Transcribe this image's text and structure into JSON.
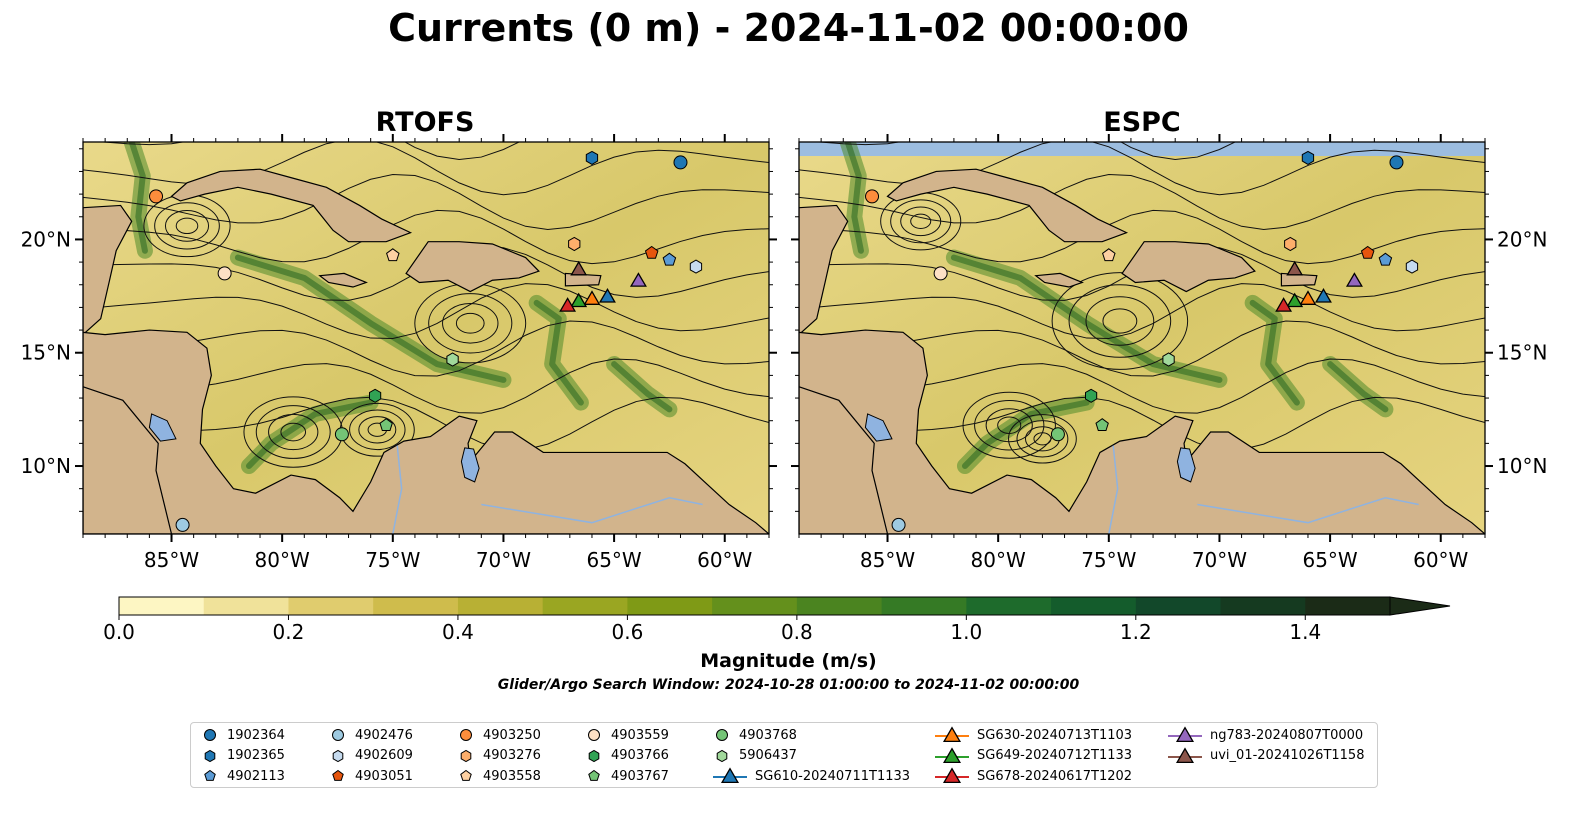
{
  "title": "Currents (0 m) - 2024-11-02 00:00:00",
  "panels": [
    {
      "title": "RTOFS"
    },
    {
      "title": "ESPC"
    }
  ],
  "lon_ticks": [
    "85°W",
    "80°W",
    "75°W",
    "70°W",
    "65°W",
    "60°W"
  ],
  "lat_ticks": [
    "20°N",
    "15°N",
    "10°N"
  ],
  "map_extent": {
    "lon": [
      -89,
      -58
    ],
    "lat": [
      7,
      24.3
    ]
  },
  "colorbar": {
    "label": "Magnitude (m/s)",
    "ticks": [
      "0.0",
      "0.2",
      "0.4",
      "0.6",
      "0.8",
      "1.0",
      "1.2",
      "1.4"
    ],
    "range": [
      0,
      1.5
    ],
    "extend": "max",
    "colors": [
      "#fdf6c3",
      "#f0e29a",
      "#e0cc6e",
      "#cfbc4c",
      "#b8b034",
      "#9aa622",
      "#7f9a16",
      "#64901c",
      "#4b8420",
      "#357a25",
      "#1e6b2c",
      "#145c2c",
      "#12482a",
      "#153a20",
      "#1b2b17"
    ]
  },
  "search_window": "Glider/Argo Search Window: 2024-10-28 01:00:00 to 2024-11-02 00:00:00",
  "chart_data": {
    "type": "map",
    "panels": [
      "RTOFS",
      "ESPC"
    ],
    "variable": "surface current magnitude (m/s) with streamlines",
    "platforms": [
      {
        "id": "1902364",
        "shape": "circle",
        "color": "#1f77b4",
        "lon": -62.0,
        "lat": 23.4
      },
      {
        "id": "1902365",
        "shape": "hexagon",
        "color": "#1f77b4",
        "lon": -66.0,
        "lat": 23.6
      },
      {
        "id": "4902113",
        "shape": "pentagon",
        "color": "#5b9bd5",
        "lon": -62.5,
        "lat": 19.1
      },
      {
        "id": "4902476",
        "shape": "circle",
        "color": "#9ecae1",
        "lon": -84.5,
        "lat": 7.4
      },
      {
        "id": "4902609",
        "shape": "hexagon",
        "color": "#c6dbef",
        "lon": -61.3,
        "lat": 18.8
      },
      {
        "id": "4903051",
        "shape": "pentagon",
        "color": "#e6550d",
        "lon": -63.3,
        "lat": 19.4
      },
      {
        "id": "4903250",
        "shape": "circle",
        "color": "#fd8d3c",
        "lon": -85.7,
        "lat": 21.9
      },
      {
        "id": "4903276",
        "shape": "hexagon",
        "color": "#fdae6b",
        "lon": -66.8,
        "lat": 19.8
      },
      {
        "id": "4903558",
        "shape": "pentagon",
        "color": "#fdd0a2",
        "lon": -75.0,
        "lat": 19.3
      },
      {
        "id": "4903559",
        "shape": "circle",
        "color": "#fde0c5",
        "lon": -82.6,
        "lat": 18.5
      },
      {
        "id": "4903766",
        "shape": "hexagon",
        "color": "#31a354",
        "lon": -75.8,
        "lat": 13.1
      },
      {
        "id": "4903767",
        "shape": "pentagon",
        "color": "#74c476",
        "lon": -75.3,
        "lat": 11.8
      },
      {
        "id": "4903768",
        "shape": "circle",
        "color": "#74c476",
        "lon": -77.3,
        "lat": 11.4
      },
      {
        "id": "5906437",
        "shape": "hexagon",
        "color": "#a1d99b",
        "lon": -72.3,
        "lat": 14.7
      },
      {
        "id": "SG610-20240711T1133",
        "shape": "triangle",
        "color": "#1f77b4",
        "lon": -65.3,
        "lat": 17.5
      },
      {
        "id": "SG630-20240713T1103",
        "shape": "triangle",
        "color": "#ff7f0e",
        "lon": -66.0,
        "lat": 17.4
      },
      {
        "id": "SG649-20240712T1133",
        "shape": "triangle",
        "color": "#2ca02c",
        "lon": -66.6,
        "lat": 17.3
      },
      {
        "id": "SG678-20240617T1202",
        "shape": "triangle",
        "color": "#d62728",
        "lon": -67.1,
        "lat": 17.1
      },
      {
        "id": "ng783-20240807T0000",
        "shape": "triangle",
        "color": "#9467bd",
        "lon": -63.9,
        "lat": 18.2
      },
      {
        "id": "uvi_01-20241026T1158",
        "shape": "triangle",
        "color": "#8c564b",
        "lon": -66.6,
        "lat": 18.7
      }
    ]
  },
  "legend": {
    "columns": [
      [
        "1902364",
        "1902365",
        "4902113"
      ],
      [
        "4902476",
        "4902609",
        "4903051"
      ],
      [
        "4903250",
        "4903276",
        "4903558"
      ],
      [
        "4903559",
        "4903766",
        "4903767"
      ],
      [
        "4903768",
        "5906437",
        "SG610-20240711T1133"
      ],
      [
        "SG630-20240713T1103",
        "SG649-20240712T1133",
        "SG678-20240617T1202"
      ],
      [
        "ng783-20240807T0000",
        "uvi_01-20241026T1158"
      ]
    ]
  }
}
